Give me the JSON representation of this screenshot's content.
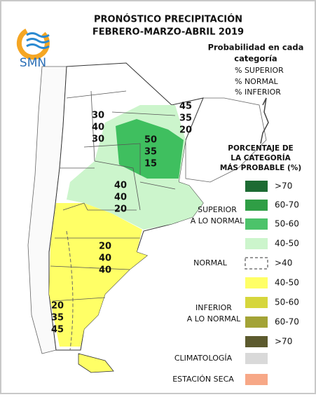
{
  "title": [
    "PRONÓSTICO PRECIPITACIÓN",
    "FEBRERO-MARZO-ABRIL 2019"
  ],
  "logo": "SMN",
  "probability_legend": {
    "title": [
      "Probabilidad en cada",
      "categoría"
    ],
    "items": [
      "% SUPERIOR",
      "% NORMAL",
      "% INFERIOR"
    ]
  },
  "percentage_legend": {
    "title": [
      "PORCENTAJE DE",
      "LA CATEGORÍA",
      "MÁS PROBABLE (%)"
    ],
    "superior": {
      "label": [
        "SUPERIOR",
        "A LO NORMAL"
      ],
      "entries": [
        ">70",
        "60-70",
        "50-60",
        "40-50"
      ]
    },
    "normal": {
      "label": "NORMAL",
      "entries": [
        ">40"
      ]
    },
    "inferior": {
      "label": [
        "INFERIOR",
        "A LO NORMAL"
      ],
      "entries": [
        "40-50",
        "50-60",
        "60-70",
        ">70"
      ]
    },
    "climatologia": "CLIMATOLOGÍA",
    "estacion_seca": "ESTACIÓN SECA"
  },
  "map_labels": [
    [
      "30",
      "40",
      "30"
    ],
    [
      "45",
      "35",
      "20"
    ],
    [
      "50",
      "35",
      "15"
    ],
    [
      "40",
      "40",
      "20"
    ],
    [
      "20",
      "40",
      "40"
    ],
    [
      "20",
      "35",
      "45"
    ]
  ]
}
